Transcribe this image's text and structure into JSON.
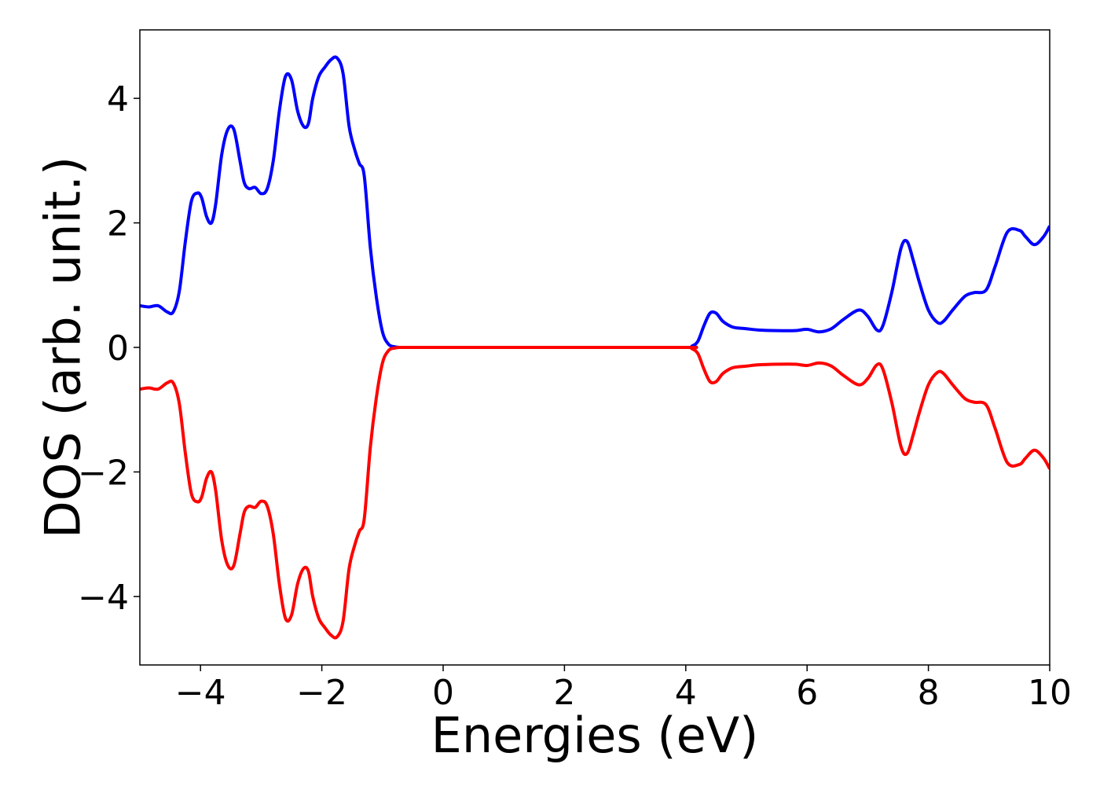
{
  "chart_data": {
    "type": "line",
    "xlabel": "Energies (eV)",
    "ylabel": "DOS (arb. unit.)",
    "xlim": [
      -5,
      10
    ],
    "ylim": [
      -5.1,
      5.1
    ],
    "xticks": [
      -4,
      -2,
      0,
      2,
      4,
      6,
      8,
      10
    ],
    "xtick_labels": [
      "−4",
      "−2",
      "0",
      "2",
      "4",
      "6",
      "8",
      "10"
    ],
    "yticks": [
      -4,
      -2,
      0,
      2,
      4
    ],
    "ytick_labels": [
      "−4",
      "−2",
      "0",
      "2",
      "4"
    ],
    "grid": false,
    "legend": "none",
    "series": [
      {
        "color": "#0000ff",
        "x": [
          -5.0,
          -4.85,
          -4.7,
          -4.55,
          -4.45,
          -4.35,
          -4.25,
          -4.15,
          -4.05,
          -3.98,
          -3.9,
          -3.82,
          -3.75,
          -3.65,
          -3.55,
          -3.45,
          -3.35,
          -3.28,
          -3.2,
          -3.1,
          -3.0,
          -2.9,
          -2.8,
          -2.7,
          -2.6,
          -2.5,
          -2.4,
          -2.3,
          -2.22,
          -2.15,
          -2.05,
          -1.95,
          -1.85,
          -1.75,
          -1.65,
          -1.55,
          -1.45,
          -1.38,
          -1.3,
          -1.2,
          -1.1,
          -1.0,
          -0.9,
          -0.8,
          -0.7,
          -0.6,
          -0.5,
          -0.4,
          0.0,
          2.0,
          4.0,
          4.1,
          4.2,
          4.3,
          4.4,
          4.5,
          4.6,
          4.7,
          4.8,
          5.0,
          5.2,
          5.5,
          5.8,
          6.0,
          6.2,
          6.4,
          6.6,
          6.85,
          7.0,
          7.15,
          7.25,
          7.4,
          7.55,
          7.65,
          7.75,
          7.85,
          8.0,
          8.15,
          8.25,
          8.4,
          8.6,
          8.75,
          8.95,
          9.1,
          9.3,
          9.5,
          9.6,
          9.75,
          9.9,
          10.0
        ],
        "y": [
          0.67,
          0.65,
          0.67,
          0.57,
          0.57,
          0.9,
          1.7,
          2.35,
          2.48,
          2.4,
          2.1,
          2.0,
          2.3,
          3.1,
          3.5,
          3.5,
          3.0,
          2.65,
          2.55,
          2.57,
          2.47,
          2.55,
          3.0,
          3.8,
          4.35,
          4.3,
          3.8,
          3.55,
          3.6,
          4.0,
          4.35,
          4.5,
          4.62,
          4.65,
          4.4,
          3.55,
          3.15,
          2.95,
          2.75,
          1.6,
          0.8,
          0.25,
          0.05,
          0.01,
          0.0,
          0.0,
          0.0,
          0.0,
          0.0,
          0.0,
          0.0,
          0.02,
          0.1,
          0.35,
          0.55,
          0.55,
          0.43,
          0.36,
          0.32,
          0.3,
          0.28,
          0.27,
          0.27,
          0.29,
          0.25,
          0.3,
          0.45,
          0.6,
          0.5,
          0.28,
          0.35,
          0.9,
          1.6,
          1.7,
          1.4,
          1.05,
          0.6,
          0.4,
          0.42,
          0.6,
          0.82,
          0.88,
          0.92,
          1.3,
          1.85,
          1.88,
          1.78,
          1.65,
          1.78,
          1.95
        ]
      },
      {
        "color": "#ff0000",
        "x": [
          -5.0,
          -4.85,
          -4.7,
          -4.55,
          -4.45,
          -4.35,
          -4.25,
          -4.15,
          -4.05,
          -3.98,
          -3.9,
          -3.82,
          -3.75,
          -3.65,
          -3.55,
          -3.45,
          -3.35,
          -3.28,
          -3.2,
          -3.1,
          -3.0,
          -2.9,
          -2.8,
          -2.7,
          -2.6,
          -2.5,
          -2.4,
          -2.3,
          -2.22,
          -2.15,
          -2.05,
          -1.95,
          -1.85,
          -1.75,
          -1.65,
          -1.55,
          -1.45,
          -1.38,
          -1.3,
          -1.2,
          -1.1,
          -1.0,
          -0.9,
          -0.8,
          -0.7,
          -0.6,
          -0.5,
          -0.4,
          0.0,
          2.0,
          4.0,
          4.1,
          4.2,
          4.3,
          4.4,
          4.5,
          4.6,
          4.7,
          4.8,
          5.0,
          5.2,
          5.5,
          5.8,
          6.0,
          6.2,
          6.4,
          6.6,
          6.85,
          7.0,
          7.15,
          7.25,
          7.4,
          7.55,
          7.65,
          7.75,
          7.85,
          8.0,
          8.15,
          8.25,
          8.4,
          8.6,
          8.75,
          8.95,
          9.1,
          9.3,
          9.5,
          9.6,
          9.75,
          9.9,
          10.0
        ],
        "y": [
          -0.67,
          -0.65,
          -0.67,
          -0.57,
          -0.57,
          -0.9,
          -1.7,
          -2.35,
          -2.48,
          -2.4,
          -2.1,
          -2.0,
          -2.3,
          -3.1,
          -3.5,
          -3.5,
          -3.0,
          -2.65,
          -2.55,
          -2.57,
          -2.47,
          -2.55,
          -3.0,
          -3.8,
          -4.35,
          -4.3,
          -3.8,
          -3.55,
          -3.6,
          -4.0,
          -4.35,
          -4.5,
          -4.62,
          -4.65,
          -4.4,
          -3.55,
          -3.15,
          -2.95,
          -2.75,
          -1.6,
          -0.8,
          -0.25,
          -0.05,
          -0.01,
          0.0,
          0.0,
          0.0,
          0.0,
          0.0,
          0.0,
          0.0,
          -0.02,
          -0.1,
          -0.35,
          -0.55,
          -0.55,
          -0.43,
          -0.36,
          -0.32,
          -0.3,
          -0.28,
          -0.27,
          -0.27,
          -0.29,
          -0.25,
          -0.3,
          -0.45,
          -0.6,
          -0.5,
          -0.28,
          -0.35,
          -0.9,
          -1.6,
          -1.7,
          -1.4,
          -1.05,
          -0.6,
          -0.4,
          -0.42,
          -0.6,
          -0.82,
          -0.88,
          -0.92,
          -1.3,
          -1.85,
          -1.88,
          -1.78,
          -1.65,
          -1.78,
          -1.95
        ]
      }
    ]
  }
}
